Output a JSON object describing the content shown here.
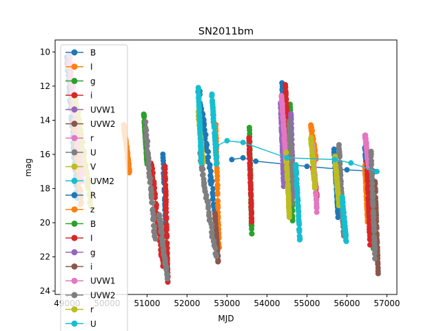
{
  "chart_data": {
    "type": "scatter",
    "title": "SN2011bm",
    "xlabel": "MJD",
    "ylabel": "mag",
    "xlim": [
      48700,
      57250
    ],
    "ylim": [
      24.2,
      9.3
    ],
    "y_inverted": true,
    "x_ticks": [
      49000,
      50000,
      51000,
      52000,
      53000,
      54000,
      55000,
      56000,
      57000
    ],
    "x_tick_labels": [
      "49000",
      "50000",
      "51000",
      "52000",
      "53000",
      "54000",
      "55000",
      "56000",
      "57000"
    ],
    "y_ticks": [
      10,
      12,
      14,
      16,
      18,
      20,
      22,
      24
    ],
    "y_tick_labels": [
      "10",
      "12",
      "14",
      "16",
      "18",
      "20",
      "22",
      "24"
    ],
    "grid": false,
    "legend_position": "upper-left",
    "series": [
      {
        "name": "B",
        "color": "#1f77b4",
        "clusters": [
          {
            "x": [
              49000,
              49250
            ],
            "y": [
              10.2,
              18.5
            ]
          },
          {
            "x": [
              51400,
              51520
            ],
            "y": [
              16.0,
              23.5
            ]
          },
          {
            "x": [
              52290,
              52720
            ],
            "y": [
              12.2,
              19.5
            ]
          },
          {
            "x": [
              54380,
              54560
            ],
            "y": [
              11.8,
              17.8
            ]
          },
          {
            "x": [
              55680,
              55780
            ],
            "y": [
              15.8,
              19.6
            ]
          },
          {
            "x": [
              56450,
              56560
            ],
            "y": [
              15.6,
              19.2
            ]
          }
        ],
        "line": {
          "x": [
            53120,
            53400,
            53720,
            55000,
            56000,
            56700
          ],
          "y": [
            16.3,
            16.2,
            16.4,
            16.7,
            16.9,
            17.0
          ]
        }
      },
      {
        "name": "I",
        "color": "#ff7f0e",
        "clusters": [
          {
            "x": [
              49050,
              49350
            ],
            "y": [
              10.5,
              19.0
            ]
          },
          {
            "x": [
              50420,
              50560
            ],
            "y": [
              14.3,
              17.0
            ]
          },
          {
            "x": [
              52720,
              52800
            ],
            "y": [
              14.2,
              21.5
            ]
          },
          {
            "x": [
              55100,
              55220
            ],
            "y": [
              14.3,
              16.2
            ]
          },
          {
            "x": [
              56450,
              56520
            ],
            "y": [
              16.6,
              20.0
            ]
          }
        ]
      },
      {
        "name": "g",
        "color": "#2ca02c",
        "clusters": [
          {
            "x": [
              50920,
              51000
            ],
            "y": [
              13.6,
              16.5
            ]
          },
          {
            "x": [
              53560,
              53620
            ],
            "y": [
              14.5,
              20.7
            ]
          },
          {
            "x": [
              54580,
              54640
            ],
            "y": [
              13.0,
              19.8
            ]
          },
          {
            "x": [
              56600,
              56660
            ],
            "y": [
              18.6,
              21.5
            ]
          }
        ]
      },
      {
        "name": "i",
        "color": "#d62728",
        "clusters": [
          {
            "x": [
              51100,
              51400
            ],
            "y": [
              16.5,
              22.6
            ]
          },
          {
            "x": [
              51450,
              51520
            ],
            "y": [
              16.8,
              23.4
            ]
          },
          {
            "x": [
              53550,
              53620
            ],
            "y": [
              15.0,
              20.0
            ]
          },
          {
            "x": [
              54460,
              54560
            ],
            "y": [
              12.0,
              16.5
            ]
          },
          {
            "x": [
              55150,
              55250
            ],
            "y": [
              16.7,
              18.5
            ]
          },
          {
            "x": [
              56500,
              56580
            ],
            "y": [
              16.5,
              21.2
            ]
          }
        ]
      },
      {
        "name": "UVW1",
        "color": "#9467bd",
        "clusters": [
          {
            "x": [
              54340,
              54420
            ],
            "y": [
              13.0,
              17.8
            ]
          },
          {
            "x": [
              54600,
              54660
            ],
            "y": [
              13.5,
              18.5
            ]
          }
        ]
      },
      {
        "name": "UVW2",
        "color": "#8c564b",
        "clusters": [
          {
            "x": [
              52700,
              52780
            ],
            "y": [
              19.5,
              22.3
            ]
          },
          {
            "x": [
              56700,
              56780
            ],
            "y": [
              17.5,
              22.9
            ]
          }
        ]
      },
      {
        "name": "r",
        "color": "#e377c2",
        "clusters": [
          {
            "x": [
              49050,
              49400
            ],
            "y": [
              10.3,
              17.5
            ]
          },
          {
            "x": [
              54360,
              54480
            ],
            "y": [
              12.5,
              16.5
            ]
          },
          {
            "x": [
              55150,
              55250
            ],
            "y": [
              15.5,
              19.3
            ]
          },
          {
            "x": [
              56450,
              56550
            ],
            "y": [
              14.8,
              16.8
            ]
          }
        ]
      },
      {
        "name": "U",
        "color": "#7f7f7f",
        "clusters": [
          {
            "x": [
              50960,
              51200
            ],
            "y": [
              14.2,
              21.0
            ]
          },
          {
            "x": [
              51300,
              51500
            ],
            "y": [
              19.5,
              23.2
            ]
          },
          {
            "x": [
              52320,
              52720
            ],
            "y": [
              16.0,
              22.0
            ]
          },
          {
            "x": [
              54560,
              54620
            ],
            "y": [
              14.0,
              18.8
            ]
          },
          {
            "x": [
              55800,
              55920
            ],
            "y": [
              15.5,
              20.8
            ]
          },
          {
            "x": [
              56600,
              56700
            ],
            "y": [
              15.8,
              22.0
            ]
          }
        ]
      },
      {
        "name": "V",
        "color": "#bcbd22",
        "clusters": [
          {
            "x": [
              49200,
              49600
            ],
            "y": [
              12.5,
              19.0
            ]
          },
          {
            "x": [
              52280,
              52400
            ],
            "y": [
              13.5,
              16.5
            ]
          },
          {
            "x": [
              54480,
              54560
            ],
            "y": [
              16.0,
              19.6
            ]
          },
          {
            "x": [
              55100,
              55200
            ],
            "y": [
              15.0,
              18.0
            ]
          },
          {
            "x": [
              55700,
              55800
            ],
            "y": [
              16.2,
              18.9
            ]
          }
        ]
      },
      {
        "name": "UVM2",
        "color": "#17becf",
        "clusters": [
          {
            "x": [
              52280,
              52360
            ],
            "y": [
              12.0,
              16.5
            ]
          },
          {
            "x": [
              52620,
              52740
            ],
            "y": [
              12.5,
              16.5
            ]
          },
          {
            "x": [
              54720,
              54820
            ],
            "y": [
              16.5,
              21.0
            ]
          },
          {
            "x": [
              55880,
              55980
            ],
            "y": [
              18.5,
              21.0
            ]
          }
        ],
        "line": {
          "x": [
            52740,
            53000,
            53400,
            54500,
            55700,
            56100,
            56750
          ],
          "y": [
            15.5,
            15.2,
            15.3,
            16.2,
            16.3,
            16.5,
            17.0
          ]
        }
      }
    ],
    "legend": [
      {
        "label": "B",
        "color": "#1f77b4"
      },
      {
        "label": "I",
        "color": "#ff7f0e"
      },
      {
        "label": "g",
        "color": "#2ca02c"
      },
      {
        "label": "i",
        "color": "#d62728"
      },
      {
        "label": "UVW1",
        "color": "#9467bd"
      },
      {
        "label": "UVW2",
        "color": "#8c564b"
      },
      {
        "label": "r",
        "color": "#e377c2"
      },
      {
        "label": "U",
        "color": "#7f7f7f"
      },
      {
        "label": "V",
        "color": "#bcbd22"
      },
      {
        "label": "UVM2",
        "color": "#17becf"
      },
      {
        "label": "R",
        "color": "#1f77b4"
      },
      {
        "label": "z",
        "color": "#ff7f0e"
      },
      {
        "label": "B",
        "color": "#2ca02c"
      },
      {
        "label": "I",
        "color": "#d62728"
      },
      {
        "label": "g",
        "color": "#9467bd"
      },
      {
        "label": "i",
        "color": "#8c564b"
      },
      {
        "label": "UVW1",
        "color": "#e377c2"
      },
      {
        "label": "UVW2",
        "color": "#7f7f7f"
      },
      {
        "label": "r",
        "color": "#bcbd22"
      },
      {
        "label": "U",
        "color": "#17becf"
      }
    ]
  }
}
